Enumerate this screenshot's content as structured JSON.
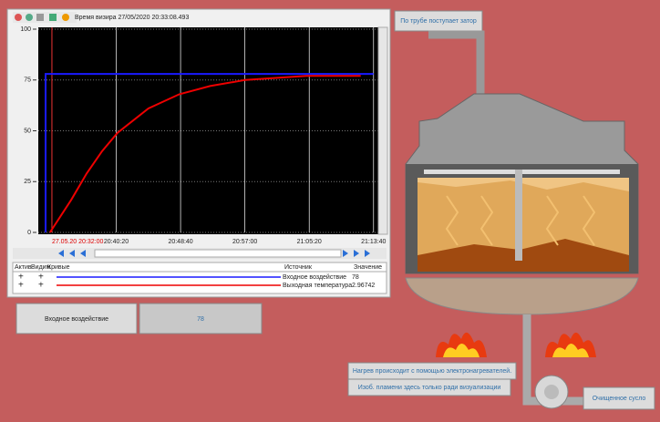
{
  "toolbar": {
    "cursor_time": "Время визира 27/05/2020 20:33:08.493"
  },
  "chart_data": {
    "type": "line",
    "ylim": [
      0,
      100
    ],
    "yticks": [
      0,
      25,
      50,
      75,
      100
    ],
    "xlim": [
      "20:30:14",
      "21:14:17"
    ],
    "xticks": [
      "27.05.20 20:32:00",
      "20:40:20",
      "20:48:40",
      "20:57:00",
      "21:05:20",
      "21:13:40"
    ],
    "grid": true,
    "series": [
      {
        "name": "Входное воздействие",
        "color": "#1a1aff",
        "x": [
          "20:31:11",
          "20:31:11",
          "21:13:40"
        ],
        "values": [
          0,
          78,
          78
        ]
      },
      {
        "name": "Выходная температура",
        "color": "#ee0000",
        "x": [
          "20:31:45",
          "20:34:30",
          "20:36:30",
          "20:38:30",
          "20:40:30",
          "20:44:30",
          "20:48:30",
          "20:52:30",
          "20:57:00",
          "21:01:00",
          "21:05:00",
          "21:12:00"
        ],
        "values": [
          0,
          16,
          29,
          40,
          49,
          61,
          68,
          72,
          75,
          76,
          77,
          77
        ]
      }
    ]
  },
  "legend_table": {
    "headers": [
      "Актив",
      "Видим",
      "Кривые",
      "Источник",
      "Значение"
    ],
    "rows": [
      [
        "+",
        "+",
        78
      ],
      [
        "+",
        "+",
        2.96742
      ]
    ]
  },
  "input": {
    "label": "Входное воздействие",
    "value": 78
  },
  "labels": {
    "pipe": "По трубе поступает затор",
    "heating": "Нагрев происходит с помощью электронагревателей.",
    "flame": "Изоб. пламени здесь только ради визуализации",
    "output": "Очищенное сусло"
  }
}
